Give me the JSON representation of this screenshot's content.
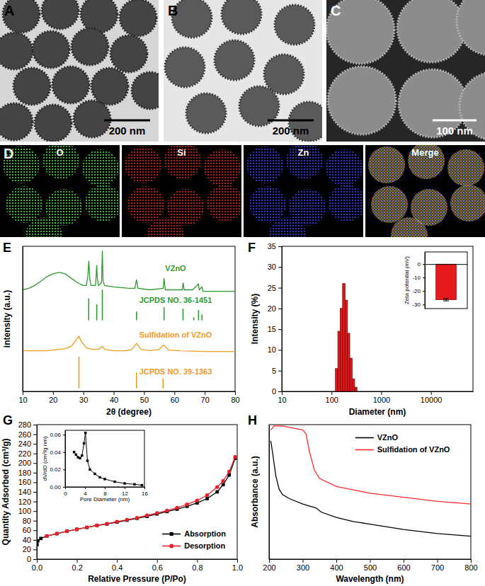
{
  "images": [
    {
      "label": "A",
      "scale_bar": "200 nm"
    },
    {
      "label": "B",
      "scale_bar": "200 nm"
    },
    {
      "label": "C",
      "scale_bar": "100 nm"
    }
  ],
  "mapping": {
    "label": "D",
    "channels": [
      "O",
      "Si",
      "Zn",
      "Merge"
    ]
  },
  "chart_data": [
    {
      "type": "line",
      "panel_label": "E",
      "xlabel": "2θ (degree)",
      "ylabel": "intensity (a.u.)",
      "xlim": [
        10,
        80
      ],
      "xticks": [
        10,
        20,
        30,
        40,
        50,
        60,
        70,
        80
      ],
      "ylim": [
        0,
        100
      ],
      "tick_labels": "x",
      "series": [
        {
          "name": "VZnO",
          "color": "#2f9a2f",
          "x": [
            10,
            12,
            14,
            16,
            18,
            20,
            22,
            24,
            26,
            28,
            30,
            31,
            31.5,
            31.8,
            32.1,
            32.5,
            34,
            34.2,
            34.4,
            34.6,
            35,
            36,
            36.25,
            36.5,
            37,
            40,
            45,
            47,
            47.5,
            48,
            52,
            56.3,
            56.6,
            57,
            60,
            62.6,
            62.9,
            63.2,
            66,
            67.9,
            68.2,
            69.1,
            69.4,
            75,
            80
          ],
          "values": [
            70,
            71,
            73,
            76,
            79,
            81,
            82,
            81,
            78,
            75,
            73,
            73,
            80,
            90,
            78,
            73,
            73,
            79,
            87,
            78,
            73,
            75,
            97,
            76,
            73,
            72,
            71,
            71,
            77,
            71,
            70,
            71,
            78,
            70,
            70,
            70,
            75,
            70,
            70,
            74,
            70,
            72,
            69,
            69,
            69
          ]
        },
        {
          "name": "JCPDS NO. 36-1451",
          "type": "stick",
          "color": "#2f9a2f",
          "base": 49,
          "x": [
            31.77,
            34.42,
            36.25,
            47.54,
            56.6,
            62.86,
            66.38,
            67.96,
            69.1
          ],
          "values": [
            64,
            60,
            70,
            55,
            58,
            57,
            51,
            56,
            53
          ]
        },
        {
          "name": "Sulfidation of VZnO",
          "color": "#f39a1e",
          "x": [
            10,
            14,
            18,
            20,
            22,
            24,
            26,
            27.5,
            28.5,
            29.5,
            31,
            33,
            35,
            36.3,
            37,
            40,
            44,
            46,
            47.5,
            49,
            52,
            55,
            56.5,
            58,
            62,
            70,
            80
          ],
          "values": [
            28,
            28,
            28,
            28.5,
            29,
            29.5,
            31,
            35,
            38,
            34,
            30,
            29,
            29,
            31,
            29,
            28,
            28,
            29,
            33,
            29,
            28,
            29,
            32,
            28.5,
            28,
            27.5,
            27.5
          ]
        },
        {
          "name": "JCPDS NO. 39-1363",
          "type": "stick",
          "color": "#f39a1e",
          "base": 2,
          "x": [
            28.56,
            47.51,
            56.29
          ],
          "values": [
            24,
            13,
            9
          ]
        }
      ]
    },
    {
      "type": "histogram",
      "panel_label": "F",
      "xlabel": "Diameter (nm)",
      "ylabel": "Intensity (%)",
      "log": "x",
      "xlim": [
        10,
        70000
      ],
      "xticks": [
        10,
        100,
        1000,
        10000
      ],
      "ylim": [
        0,
        35
      ],
      "yticks": [
        0,
        5,
        10,
        15,
        20,
        25,
        30,
        35
      ],
      "color": "#e41a1c",
      "bins": [
        120,
        134,
        150,
        167,
        187,
        209,
        233,
        260,
        291,
        325
      ],
      "values": [
        5.5,
        14.5,
        20,
        26,
        22,
        14,
        8,
        3,
        1
      ]
    },
    {
      "type": "bar",
      "ylabel": "Zeta potential (mV)",
      "ylim": [
        -33,
        9
      ],
      "yticks": [
        -30,
        -20,
        -10,
        0
      ],
      "tick_labels": "y",
      "categories": [
        null
      ],
      "values": [
        -26.5
      ],
      "errors": [
        0.8
      ],
      "color": "#e41a1c"
    },
    {
      "type": "line",
      "panel_label": "G",
      "xlabel": "Relative Pressure (P/Po)",
      "ylabel": "Quantity Adsorbed (cm³/g)",
      "xlim": [
        0,
        1
      ],
      "xticks": [
        {
          "value": 0,
          "label": "0.0"
        },
        {
          "value": 0.2,
          "label": "0.2"
        },
        {
          "value": 0.4,
          "label": "0.4"
        },
        {
          "value": 0.6,
          "label": "0.6"
        },
        {
          "value": 0.8,
          "label": "0.8"
        },
        {
          "value": 1,
          "label": "1.0"
        }
      ],
      "ylim": [
        0,
        280
      ],
      "yticks": [
        0,
        20,
        40,
        60,
        80,
        100,
        120,
        140,
        160,
        180,
        200,
        220,
        240,
        260,
        280
      ],
      "legend": "bottom-right",
      "series": [
        {
          "name": "Absorption",
          "color": "#000000",
          "marker": "square",
          "x": [
            0.001,
            0.005,
            0.02,
            0.05,
            0.1,
            0.15,
            0.2,
            0.25,
            0.3,
            0.35,
            0.4,
            0.45,
            0.5,
            0.55,
            0.6,
            0.65,
            0.7,
            0.75,
            0.8,
            0.85,
            0.9,
            0.93,
            0.96,
            0.99
          ],
          "values": [
            30,
            38,
            43,
            48,
            53,
            58,
            62,
            66,
            70,
            73,
            77,
            81,
            85,
            89,
            94,
            99,
            104,
            110,
            117,
            126,
            140,
            155,
            175,
            210
          ]
        },
        {
          "name": "Desorption",
          "color": "#e8202a",
          "marker": "circle",
          "x": [
            0.05,
            0.1,
            0.15,
            0.2,
            0.25,
            0.3,
            0.35,
            0.4,
            0.45,
            0.5,
            0.55,
            0.6,
            0.65,
            0.7,
            0.75,
            0.8,
            0.85,
            0.9,
            0.93,
            0.96,
            0.99
          ],
          "values": [
            48,
            53,
            58,
            62,
            66,
            70,
            74,
            78,
            82,
            86,
            91,
            96,
            101,
            107,
            114,
            122,
            133,
            150,
            163,
            182,
            213
          ]
        }
      ]
    },
    {
      "type": "line",
      "xlabel": "Pore Diameter (nm)",
      "ylabel": "dV/dD (cm³/g nm)",
      "xlim": [
        0,
        16
      ],
      "xticks": [
        0,
        4,
        8,
        12,
        16
      ],
      "ylim": [
        0,
        0.065
      ],
      "yticks": [
        {
          "value": 0,
          "label": "0.00"
        },
        {
          "value": 0.02,
          "label": "0.02"
        },
        {
          "value": 0.04,
          "label": "0.04"
        },
        {
          "value": 0.06,
          "label": "0.06"
        }
      ],
      "series": [
        {
          "color": "#000000",
          "marker": "square",
          "x": [
            1.8,
            2.2,
            2.6,
            3.0,
            3.4,
            3.8,
            4.1,
            4.5,
            5,
            6,
            7,
            8,
            10,
            12,
            14,
            15.5
          ],
          "values": [
            0.04,
            0.037,
            0.034,
            0.033,
            0.036,
            0.05,
            0.062,
            0.03,
            0.02,
            0.015,
            0.011,
            0.009,
            0.006,
            0.004,
            0.003,
            0.002
          ]
        }
      ]
    },
    {
      "type": "line",
      "panel_label": "H",
      "xlabel": "Wavelength (nm)",
      "ylabel": "Absorbance (a.u.)",
      "xlim": [
        200,
        800
      ],
      "xticks": [
        200,
        300,
        400,
        500,
        600,
        700,
        800
      ],
      "ylim": [
        0,
        1
      ],
      "tick_labels": "x",
      "legend": "top-right",
      "series": [
        {
          "name": "VZnO",
          "color": "#000000",
          "x": [
            205,
            210,
            220,
            230,
            240,
            260,
            300,
            340,
            355,
            400,
            450,
            500,
            600,
            700,
            800
          ],
          "values": [
            0.88,
            0.8,
            0.62,
            0.52,
            0.48,
            0.45,
            0.41,
            0.38,
            0.35,
            0.31,
            0.28,
            0.26,
            0.22,
            0.19,
            0.17
          ]
        },
        {
          "name": "Sulfidation of VZnO",
          "color": "#ff2a2a",
          "x": [
            205,
            215,
            240,
            280,
            300,
            310,
            320,
            335,
            350,
            400,
            500,
            600,
            700,
            800
          ],
          "values": [
            0.96,
            0.99,
            0.99,
            0.97,
            0.96,
            0.93,
            0.8,
            0.66,
            0.6,
            0.54,
            0.49,
            0.46,
            0.43,
            0.41
          ]
        }
      ]
    }
  ]
}
